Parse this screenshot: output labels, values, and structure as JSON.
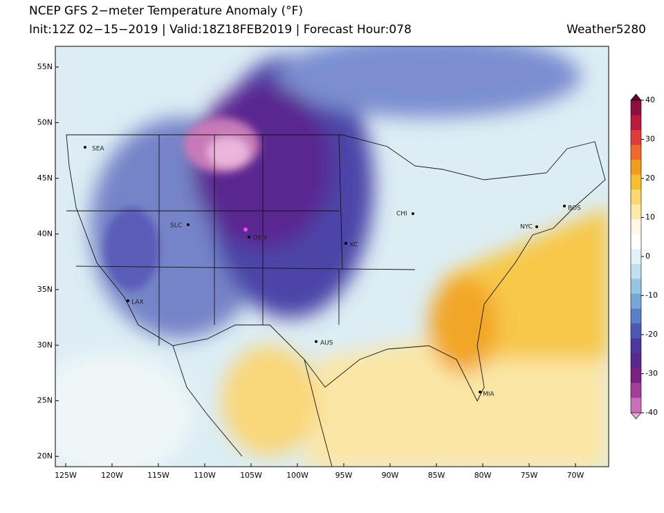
{
  "header": {
    "title": "NCEP GFS 2−meter Temperature Anomaly (°F)",
    "subtitle": "Init:12Z 02−15−2019 | Valid:18Z18FEB2019 | Forecast Hour:078",
    "credit": "Weather5280"
  },
  "map": {
    "lat_ticks": [
      {
        "value": 55,
        "label": "55N"
      },
      {
        "value": 50,
        "label": "50N"
      },
      {
        "value": 45,
        "label": "45N"
      },
      {
        "value": 40,
        "label": "40N"
      },
      {
        "value": 35,
        "label": "35N"
      },
      {
        "value": 30,
        "label": "30N"
      },
      {
        "value": 25,
        "label": "25N"
      },
      {
        "value": 20,
        "label": "20N"
      }
    ],
    "lon_ticks": [
      {
        "value": -125,
        "label": "125W"
      },
      {
        "value": -120,
        "label": "120W"
      },
      {
        "value": -115,
        "label": "115W"
      },
      {
        "value": -110,
        "label": "110W"
      },
      {
        "value": -105,
        "label": "105W"
      },
      {
        "value": -100,
        "label": "100W"
      },
      {
        "value": -95,
        "label": "95W"
      },
      {
        "value": -90,
        "label": "90W"
      },
      {
        "value": -85,
        "label": "85W"
      },
      {
        "value": -80,
        "label": "80W"
      },
      {
        "value": -75,
        "label": "75W"
      },
      {
        "value": -70,
        "label": "70W"
      }
    ],
    "cities": [
      "SEA",
      "SLC",
      "DEN",
      "KC",
      "CHI",
      "NYC",
      "BOS",
      "LAX",
      "AUS",
      "MIA"
    ]
  },
  "colorbar": {
    "lim": [
      -40,
      40
    ],
    "ticks": [
      40,
      30,
      20,
      10,
      0,
      -10,
      -20,
      -30,
      -40
    ],
    "colors": [
      "#5c0a2a",
      "#8b1040",
      "#b81c3c",
      "#e03a3a",
      "#f06a30",
      "#f59a20",
      "#f8bf30",
      "#fbd870",
      "#fdeaa8",
      "#fef8e4",
      "#ffffff",
      "#e2f2f8",
      "#c0e0ee",
      "#98c6e2",
      "#78a6d8",
      "#5a7ec8",
      "#4c58b2",
      "#4a389e",
      "#5a2890",
      "#7a2282",
      "#a23e98",
      "#c870b8",
      "#e8a8d8"
    ]
  }
}
